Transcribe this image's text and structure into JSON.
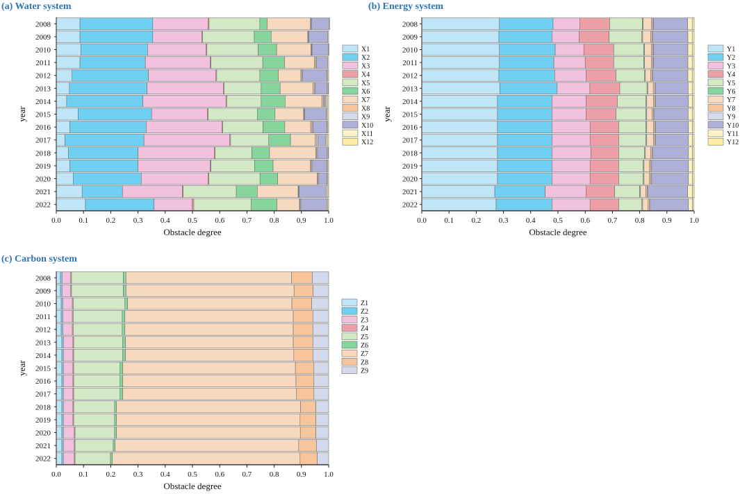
{
  "chart_data": [
    {
      "id": "water",
      "type": "bar",
      "orientation": "horizontal-stacked",
      "title": "(a) Water system",
      "xlabel": "Obstacle degree",
      "ylabel": "year",
      "xlim": [
        0,
        1.0
      ],
      "xticks": [
        "0.0",
        "0.1",
        "0.2",
        "0.3",
        "0.4",
        "0.5",
        "0.6",
        "0.7",
        "0.8",
        "0.9",
        "1.0"
      ],
      "categories": [
        "2008",
        "2009",
        "2010",
        "2011",
        "2012",
        "2013",
        "2014",
        "2015",
        "2016",
        "2017",
        "2018",
        "2019",
        "2020",
        "2021",
        "2022"
      ],
      "legend": [
        "X1",
        "X2",
        "X3",
        "X4",
        "X5",
        "X6",
        "X7",
        "X8",
        "X9",
        "X10",
        "X11",
        "X12"
      ],
      "values": [
        [
          0.087,
          0.267,
          0.203,
          0.004,
          0.186,
          0.027,
          0.159,
          0.002,
          0.003,
          0.063,
          0.003,
          0.0
        ],
        [
          0.087,
          0.267,
          0.18,
          0.003,
          0.19,
          0.062,
          0.134,
          0.002,
          0.002,
          0.07,
          0.003,
          0.0
        ],
        [
          0.09,
          0.245,
          0.215,
          0.003,
          0.188,
          0.068,
          0.126,
          0.002,
          0.002,
          0.06,
          0.003,
          0.0
        ],
        [
          0.087,
          0.24,
          0.238,
          0.003,
          0.19,
          0.08,
          0.11,
          0.005,
          0.003,
          0.04,
          0.004,
          0.0
        ],
        [
          0.058,
          0.28,
          0.248,
          0.003,
          0.158,
          0.068,
          0.083,
          0.003,
          0.003,
          0.09,
          0.003,
          0.003
        ],
        [
          0.048,
          0.285,
          0.28,
          0.003,
          0.136,
          0.07,
          0.12,
          0.005,
          0.003,
          0.045,
          0.003,
          0.002
        ],
        [
          0.038,
          0.28,
          0.305,
          0.003,
          0.126,
          0.088,
          0.135,
          0.005,
          0.003,
          0.007,
          0.005,
          0.005
        ],
        [
          0.08,
          0.27,
          0.205,
          0.003,
          0.18,
          0.065,
          0.105,
          0.002,
          0.002,
          0.08,
          0.003,
          0.005
        ],
        [
          0.05,
          0.28,
          0.278,
          0.003,
          0.148,
          0.08,
          0.095,
          0.005,
          0.003,
          0.052,
          0.003,
          0.003
        ],
        [
          0.032,
          0.29,
          0.315,
          0.003,
          0.14,
          0.08,
          0.09,
          0.005,
          0.005,
          0.03,
          0.005,
          0.005
        ],
        [
          0.045,
          0.255,
          0.28,
          0.003,
          0.135,
          0.065,
          0.17,
          0.003,
          0.003,
          0.036,
          0.003,
          0.002
        ],
        [
          0.05,
          0.25,
          0.265,
          0.003,
          0.16,
          0.068,
          0.137,
          0.003,
          0.003,
          0.055,
          0.003,
          0.003
        ],
        [
          0.062,
          0.25,
          0.245,
          0.003,
          0.188,
          0.065,
          0.145,
          0.003,
          0.003,
          0.03,
          0.003,
          0.003
        ],
        [
          0.095,
          0.148,
          0.22,
          0.003,
          0.195,
          0.077,
          0.15,
          0.002,
          0.002,
          0.1,
          0.005,
          0.003
        ],
        [
          0.107,
          0.252,
          0.14,
          0.006,
          0.21,
          0.095,
          0.083,
          0.002,
          0.003,
          0.095,
          0.004,
          0.003
        ]
      ]
    },
    {
      "id": "energy",
      "type": "bar",
      "orientation": "horizontal-stacked",
      "title": "(b) Energy system",
      "xlabel": "Obstacle degree",
      "ylabel": "year",
      "xlim": [
        0,
        1.0
      ],
      "xticks": [
        "0.0",
        "0.1",
        "0.2",
        "0.3",
        "0.4",
        "0.5",
        "0.6",
        "0.7",
        "0.8",
        "0.9",
        "1.0"
      ],
      "categories": [
        "2008",
        "2009",
        "2010",
        "2011",
        "2012",
        "2013",
        "2014",
        "2015",
        "2016",
        "2017",
        "2018",
        "2019",
        "2020",
        "2021",
        "2022"
      ],
      "legend": [
        "Y1",
        "Y2",
        "Y3",
        "Y4",
        "Y5",
        "Y6",
        "Y7",
        "Y8",
        "Y9",
        "Y10",
        "Y11",
        "Y12"
      ],
      "values": [
        [
          0.285,
          0.197,
          0.098,
          0.11,
          0.12,
          0.003,
          0.03,
          0.005,
          0.003,
          0.125,
          0.017,
          0.007
        ],
        [
          0.283,
          0.195,
          0.1,
          0.11,
          0.12,
          0.003,
          0.03,
          0.005,
          0.003,
          0.128,
          0.016,
          0.007
        ],
        [
          0.285,
          0.205,
          0.105,
          0.11,
          0.11,
          0.003,
          0.025,
          0.005,
          0.003,
          0.126,
          0.016,
          0.007
        ],
        [
          0.285,
          0.2,
          0.115,
          0.105,
          0.11,
          0.003,
          0.025,
          0.005,
          0.003,
          0.126,
          0.016,
          0.007
        ],
        [
          0.283,
          0.205,
          0.115,
          0.11,
          0.105,
          0.003,
          0.02,
          0.005,
          0.003,
          0.128,
          0.016,
          0.007
        ],
        [
          0.287,
          0.21,
          0.12,
          0.11,
          0.1,
          0.003,
          0.02,
          0.005,
          0.003,
          0.12,
          0.015,
          0.007
        ],
        [
          0.278,
          0.2,
          0.125,
          0.115,
          0.105,
          0.003,
          0.025,
          0.005,
          0.003,
          0.12,
          0.015,
          0.006
        ],
        [
          0.278,
          0.2,
          0.125,
          0.11,
          0.11,
          0.003,
          0.02,
          0.005,
          0.003,
          0.124,
          0.015,
          0.007
        ],
        [
          0.278,
          0.2,
          0.14,
          0.105,
          0.1,
          0.003,
          0.025,
          0.005,
          0.003,
          0.12,
          0.015,
          0.006
        ],
        [
          0.278,
          0.2,
          0.14,
          0.105,
          0.1,
          0.003,
          0.025,
          0.005,
          0.003,
          0.12,
          0.015,
          0.006
        ],
        [
          0.278,
          0.2,
          0.143,
          0.102,
          0.095,
          0.003,
          0.02,
          0.005,
          0.003,
          0.13,
          0.015,
          0.006
        ],
        [
          0.278,
          0.2,
          0.14,
          0.105,
          0.09,
          0.003,
          0.02,
          0.005,
          0.003,
          0.135,
          0.015,
          0.006
        ],
        [
          0.278,
          0.2,
          0.14,
          0.105,
          0.09,
          0.003,
          0.02,
          0.005,
          0.003,
          0.135,
          0.015,
          0.006
        ],
        [
          0.268,
          0.185,
          0.15,
          0.105,
          0.092,
          0.003,
          0.02,
          0.005,
          0.003,
          0.145,
          0.018,
          0.006
        ],
        [
          0.273,
          0.205,
          0.14,
          0.105,
          0.085,
          0.003,
          0.02,
          0.005,
          0.003,
          0.14,
          0.015,
          0.004
        ]
      ]
    },
    {
      "id": "carbon",
      "type": "bar",
      "orientation": "horizontal-stacked",
      "title": "(c) Carbon system",
      "xlabel": "Obstacle degree",
      "ylabel": "year",
      "xlim": [
        0,
        1.0
      ],
      "xticks": [
        "0.0",
        "0.1",
        "0.2",
        "0.3",
        "0.4",
        "0.5",
        "0.6",
        "0.7",
        "0.8",
        "0.9",
        "1.0"
      ],
      "categories": [
        "2008",
        "2009",
        "2010",
        "2011",
        "2012",
        "2013",
        "2014",
        "2015",
        "2016",
        "2017",
        "2018",
        "2019",
        "2020",
        "2021",
        "2022"
      ],
      "legend": [
        "Z1",
        "Z2",
        "Z3",
        "Z4",
        "Z5",
        "Z6",
        "Z7",
        "Z8",
        "Z9"
      ],
      "values": [
        [
          0.015,
          0.006,
          0.032,
          0.003,
          0.19,
          0.01,
          0.608,
          0.076,
          0.06
        ],
        [
          0.015,
          0.006,
          0.032,
          0.003,
          0.19,
          0.01,
          0.617,
          0.07,
          0.057
        ],
        [
          0.018,
          0.006,
          0.035,
          0.003,
          0.19,
          0.01,
          0.603,
          0.073,
          0.062
        ],
        [
          0.018,
          0.006,
          0.035,
          0.003,
          0.18,
          0.01,
          0.618,
          0.072,
          0.058
        ],
        [
          0.018,
          0.006,
          0.035,
          0.003,
          0.18,
          0.01,
          0.618,
          0.072,
          0.058
        ],
        [
          0.02,
          0.006,
          0.035,
          0.003,
          0.18,
          0.01,
          0.616,
          0.072,
          0.058
        ],
        [
          0.02,
          0.006,
          0.035,
          0.003,
          0.18,
          0.01,
          0.618,
          0.07,
          0.058
        ],
        [
          0.02,
          0.006,
          0.035,
          0.003,
          0.17,
          0.01,
          0.634,
          0.068,
          0.054
        ],
        [
          0.02,
          0.006,
          0.035,
          0.003,
          0.17,
          0.01,
          0.636,
          0.066,
          0.054
        ],
        [
          0.02,
          0.006,
          0.035,
          0.003,
          0.17,
          0.01,
          0.638,
          0.064,
          0.054
        ],
        [
          0.02,
          0.006,
          0.035,
          0.003,
          0.15,
          0.007,
          0.676,
          0.056,
          0.047
        ],
        [
          0.02,
          0.006,
          0.035,
          0.003,
          0.15,
          0.007,
          0.674,
          0.058,
          0.047
        ],
        [
          0.02,
          0.006,
          0.04,
          0.003,
          0.145,
          0.007,
          0.675,
          0.057,
          0.047
        ],
        [
          0.02,
          0.006,
          0.04,
          0.003,
          0.14,
          0.007,
          0.674,
          0.065,
          0.045
        ],
        [
          0.02,
          0.006,
          0.04,
          0.003,
          0.13,
          0.007,
          0.689,
          0.063,
          0.042
        ]
      ]
    }
  ],
  "colors": {
    "segments": [
      "#bfe6f7",
      "#6fd0f2",
      "#f2c1dd",
      "#ed9fa7",
      "#d3e9c6",
      "#86d59d",
      "#f7d9bf",
      "#f7c59c",
      "#d4d9ec",
      "#aeb0d8",
      "#fbf2c5",
      "#fcefa3"
    ],
    "title": "#2e75b6",
    "edge": "#6f6f6f"
  }
}
